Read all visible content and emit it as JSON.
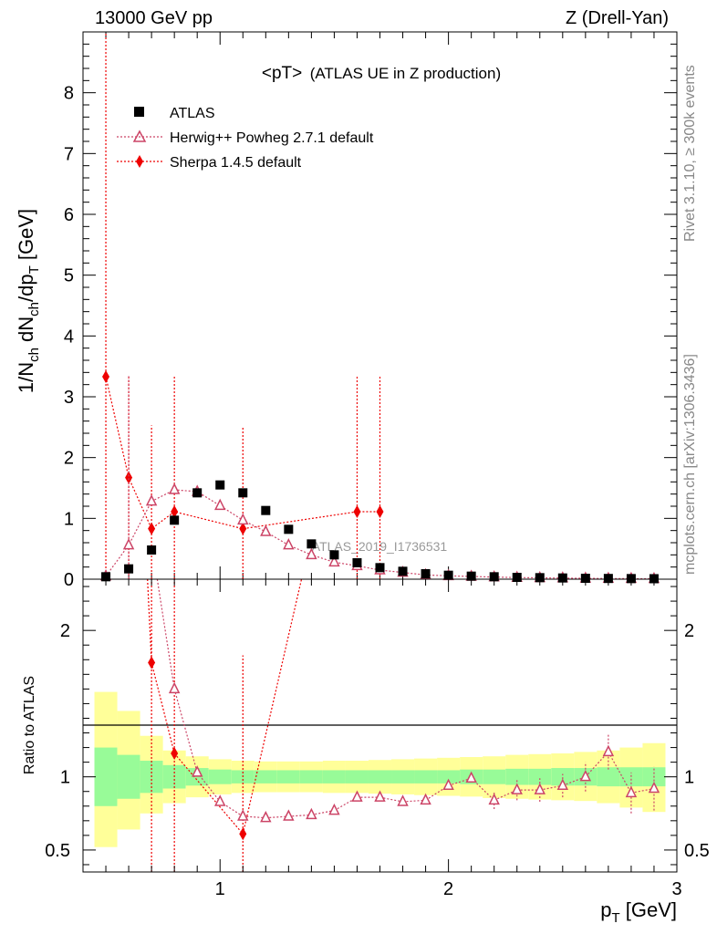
{
  "header": {
    "left": "13000 GeV pp",
    "right": "Z (Drell-Yan)"
  },
  "side_labels": {
    "top": "Rivet 3.1.10, ≥ 300k events",
    "bottom": "mcplots.cern.ch [arXiv:1306.3436]"
  },
  "chart_data": [
    {
      "type": "scatter",
      "title": "<pT> (ATLAS UE in Z production)",
      "title_main": "<pT>",
      "title_sub": "(ATLAS UE in Z production)",
      "watermark": "ATLAS_2019_I1736531",
      "xlabel": "p_T [GeV]",
      "ylabel": "1/N_ch dN_ch/dp_T [GeV]",
      "xlim": [
        0.4,
        3.0
      ],
      "ylim": [
        0,
        9.0
      ],
      "yticks": [
        0,
        1,
        2,
        3,
        4,
        5,
        6,
        7,
        8
      ],
      "legend_position": "top-left",
      "series": [
        {
          "name": "ATLAS",
          "color": "#000000",
          "marker": "square",
          "x": [
            0.5,
            0.6,
            0.7,
            0.8,
            0.9,
            1.0,
            1.1,
            1.2,
            1.3,
            1.4,
            1.5,
            1.6,
            1.7,
            1.8,
            1.9,
            2.0,
            2.1,
            2.2,
            2.3,
            2.4,
            2.5,
            2.6,
            2.7,
            2.8,
            2.9
          ],
          "y": [
            0.04,
            0.17,
            0.48,
            0.97,
            1.42,
            1.55,
            1.42,
            1.13,
            0.82,
            0.58,
            0.4,
            0.27,
            0.19,
            0.13,
            0.09,
            0.065,
            0.05,
            0.04,
            0.03,
            0.025,
            0.02,
            0.015,
            0.012,
            0.01,
            0.008
          ]
        },
        {
          "name": "Herwig++ Powheg 2.7.1 default",
          "color": "#cc4466",
          "marker": "open-triangle",
          "x": [
            0.5,
            0.6,
            0.7,
            0.8,
            0.9,
            1.0,
            1.1,
            1.2,
            1.3,
            1.4,
            1.5,
            1.6,
            1.7,
            1.8,
            1.9,
            2.0,
            2.1,
            2.2,
            2.3,
            2.4,
            2.5,
            2.6,
            2.7,
            2.8,
            2.9
          ],
          "y": [
            0.05,
            0.56,
            1.28,
            1.47,
            1.44,
            1.21,
            0.97,
            0.78,
            0.56,
            0.4,
            0.28,
            0.22,
            0.15,
            0.11,
            0.07,
            0.055,
            0.045,
            0.035,
            0.027,
            0.022,
            0.018,
            0.014,
            0.011,
            0.009,
            0.007
          ],
          "err_x": [
            0.6
          ],
          "err_lo": [
            0.55
          ],
          "err_hi": [
            2.8
          ]
        },
        {
          "name": "Sherpa 1.4.5 default",
          "color": "#ee0000",
          "marker": "diamond",
          "x": [
            0.5,
            0.6,
            0.7,
            0.8,
            1.1,
            1.6,
            1.7
          ],
          "y": [
            3.33,
            1.67,
            0.83,
            1.11,
            0.83,
            1.11,
            1.11
          ],
          "err_lo": [
            3.33,
            1.67,
            0.83,
            1.11,
            0.83,
            1.11,
            1.11
          ],
          "err_hi": [
            6.66,
            1.67,
            1.7,
            2.22,
            1.67,
            2.22,
            2.22
          ]
        }
      ]
    },
    {
      "type": "line",
      "xlabel": "p_T [GeV]",
      "ylabel": "Ratio to ATLAS",
      "xlim": [
        0.4,
        3.0
      ],
      "ylim": [
        0.35,
        2.35
      ],
      "xticks": [
        1,
        2,
        3
      ],
      "yticks": [
        0.5,
        1,
        2
      ],
      "reference_line": 1,
      "bands": {
        "x_edges": [
          0.45,
          0.55,
          0.65,
          0.75,
          0.85,
          0.95,
          1.05,
          1.15,
          1.25,
          1.35,
          1.45,
          1.55,
          1.65,
          1.75,
          1.85,
          1.95,
          2.05,
          2.15,
          2.25,
          2.35,
          2.45,
          2.55,
          2.65,
          2.75,
          2.85,
          2.95
        ],
        "inner_lo": [
          0.8,
          0.85,
          0.89,
          0.92,
          0.94,
          0.95,
          0.955,
          0.955,
          0.955,
          0.955,
          0.955,
          0.955,
          0.955,
          0.955,
          0.955,
          0.955,
          0.95,
          0.95,
          0.945,
          0.945,
          0.94,
          0.94,
          0.935,
          0.935,
          0.935
        ],
        "inner_hi": [
          1.2,
          1.15,
          1.11,
          1.08,
          1.06,
          1.05,
          1.045,
          1.045,
          1.045,
          1.045,
          1.045,
          1.045,
          1.045,
          1.045,
          1.045,
          1.045,
          1.05,
          1.05,
          1.055,
          1.055,
          1.06,
          1.06,
          1.065,
          1.065,
          1.065
        ],
        "outer_lo": [
          0.52,
          0.64,
          0.75,
          0.82,
          0.86,
          0.88,
          0.89,
          0.895,
          0.895,
          0.895,
          0.89,
          0.89,
          0.885,
          0.88,
          0.875,
          0.87,
          0.865,
          0.855,
          0.85,
          0.845,
          0.84,
          0.835,
          0.82,
          0.79,
          0.76
        ],
        "outer_hi": [
          1.58,
          1.45,
          1.28,
          1.18,
          1.14,
          1.12,
          1.11,
          1.105,
          1.105,
          1.105,
          1.11,
          1.11,
          1.115,
          1.12,
          1.125,
          1.13,
          1.135,
          1.14,
          1.15,
          1.155,
          1.16,
          1.17,
          1.18,
          1.2,
          1.23
        ],
        "inner_color": "#98fb98",
        "outer_color": "#ffff99"
      },
      "series": [
        {
          "name": "Herwig++ Powheg 2.7.1 default",
          "color": "#cc4466",
          "x": [
            0.8,
            0.9,
            1.0,
            1.1,
            1.2,
            1.3,
            1.4,
            1.5,
            1.6,
            1.7,
            1.8,
            1.9,
            2.0,
            2.1,
            2.2,
            2.3,
            2.4,
            2.5,
            2.6,
            2.7,
            2.8,
            2.9
          ],
          "y": [
            1.6,
            1.03,
            0.83,
            0.73,
            0.72,
            0.73,
            0.74,
            0.77,
            0.86,
            0.86,
            0.83,
            0.84,
            0.94,
            0.99,
            0.84,
            0.91,
            0.91,
            0.94,
            1.0,
            1.17,
            0.89,
            0.92
          ],
          "err": [
            0,
            0,
            0,
            0,
            0,
            0,
            0,
            0,
            0,
            0,
            0,
            0,
            0,
            0,
            0.06,
            0.07,
            0.08,
            0.08,
            0.1,
            0.12,
            0.14,
            0.15
          ]
        },
        {
          "name": "Sherpa 1.4.5 default",
          "color": "#ee0000",
          "x": [
            0.7,
            0.8,
            1.1
          ],
          "y": [
            1.78,
            1.16,
            0.61
          ],
          "err_lo": [
            1.78,
            1.16,
            0.61
          ],
          "err_hi": [
            3.6,
            2.3,
            1.22
          ]
        }
      ]
    }
  ]
}
